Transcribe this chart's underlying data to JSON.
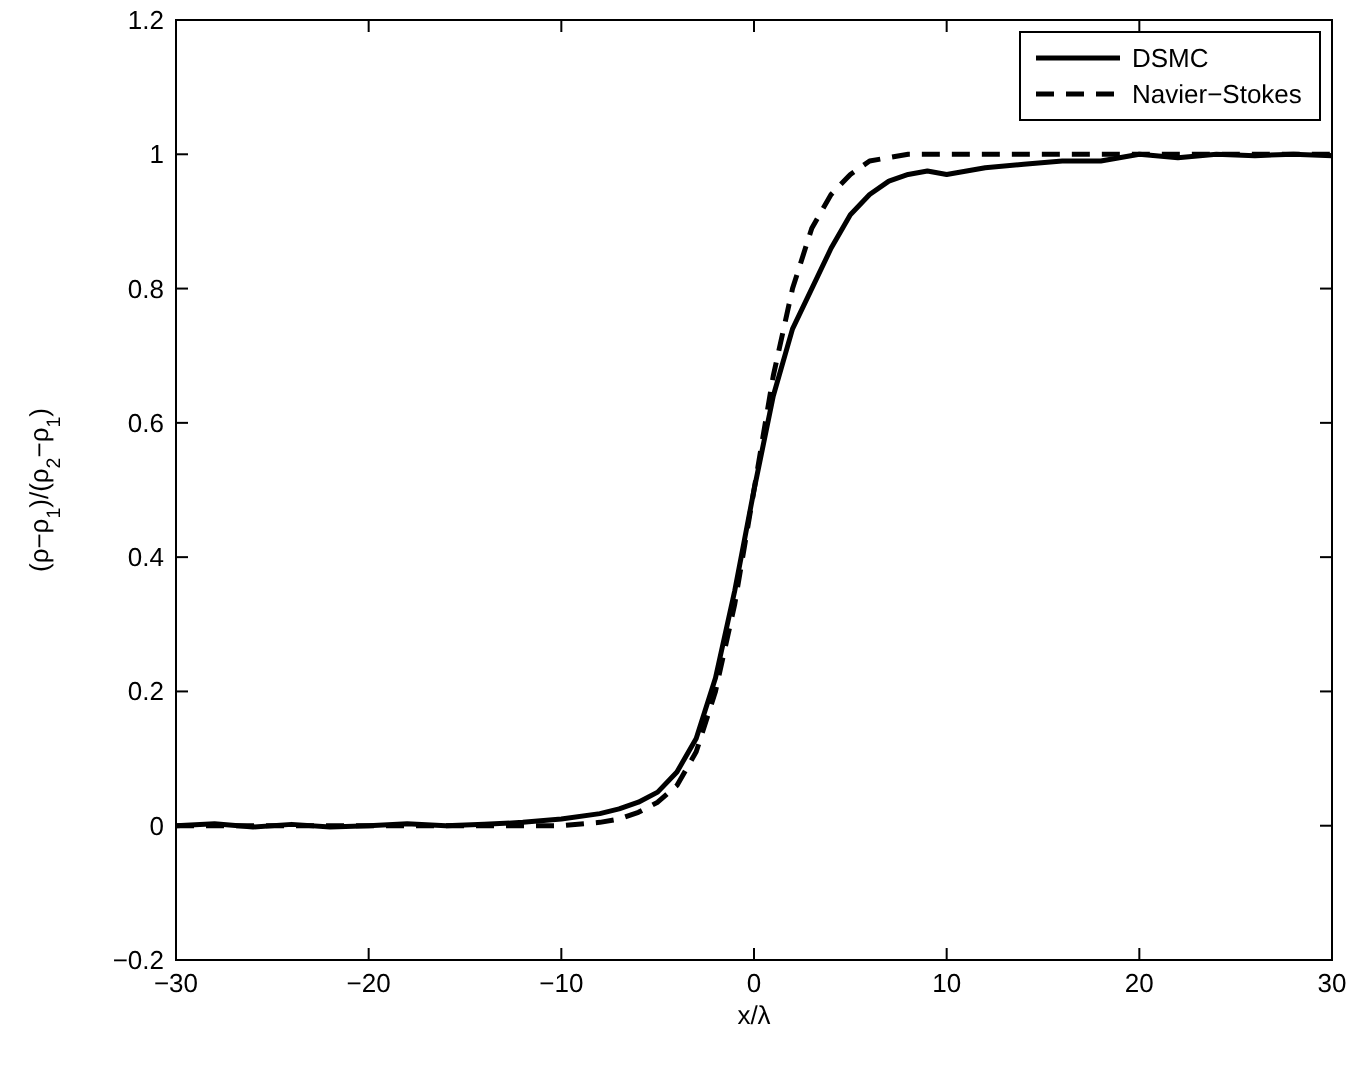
{
  "chart_data": {
    "type": "line",
    "xlabel": "x/λ",
    "ylabel": "(ρ−ρ$_{1}$)/(ρ$_{2}$−ρ$_{1}$)",
    "xlim": [
      -30,
      30
    ],
    "ylim": [
      -0.2,
      1.2
    ],
    "xticks": [
      {
        "value": -30,
        "label": "−30"
      },
      {
        "value": -20,
        "label": "−20"
      },
      {
        "value": -10,
        "label": "−10"
      },
      0,
      10,
      20,
      30
    ],
    "yticks": [
      {
        "value": -0.2,
        "label": "−0.2"
      },
      0,
      0.2,
      0.4,
      0.6,
      0.8,
      1,
      1.2
    ],
    "grid": false,
    "legend": "top right",
    "series": [
      {
        "name": "DSMC",
        "color": "#000000",
        "line_style": "solid",
        "x": [
          -30,
          -28,
          -26,
          -24,
          -22,
          -20,
          -18,
          -16,
          -14,
          -12,
          -10,
          -8,
          -7,
          -6,
          -5,
          -4,
          -3,
          -2,
          -1,
          0,
          1,
          2,
          3,
          4,
          5,
          6,
          7,
          8,
          9,
          10,
          12,
          14,
          16,
          18,
          20,
          22,
          24,
          26,
          28,
          30
        ],
        "values": [
          0,
          0.003,
          -0.002,
          0.002,
          -0.002,
          0,
          0.003,
          0,
          0.002,
          0.005,
          0.01,
          0.018,
          0.025,
          0.035,
          0.05,
          0.08,
          0.13,
          0.22,
          0.35,
          0.5,
          0.64,
          0.74,
          0.8,
          0.86,
          0.91,
          0.94,
          0.96,
          0.97,
          0.975,
          0.97,
          0.98,
          0.985,
          0.99,
          0.99,
          1,
          0.995,
          1,
          0.998,
          1,
          0.998
        ]
      },
      {
        "name": "Navier−Stokes",
        "color": "#000000",
        "line_style": "dashed",
        "x": [
          -30,
          -10,
          -8,
          -7,
          -6,
          -5,
          -4,
          -3,
          -2,
          -1,
          0,
          1,
          2,
          3,
          4,
          5,
          6,
          7,
          8,
          30
        ],
        "values": [
          0,
          0,
          0.005,
          0.01,
          0.02,
          0.035,
          0.06,
          0.11,
          0.2,
          0.33,
          0.5,
          0.67,
          0.8,
          0.89,
          0.94,
          0.97,
          0.99,
          0.995,
          1,
          1
        ]
      }
    ]
  }
}
